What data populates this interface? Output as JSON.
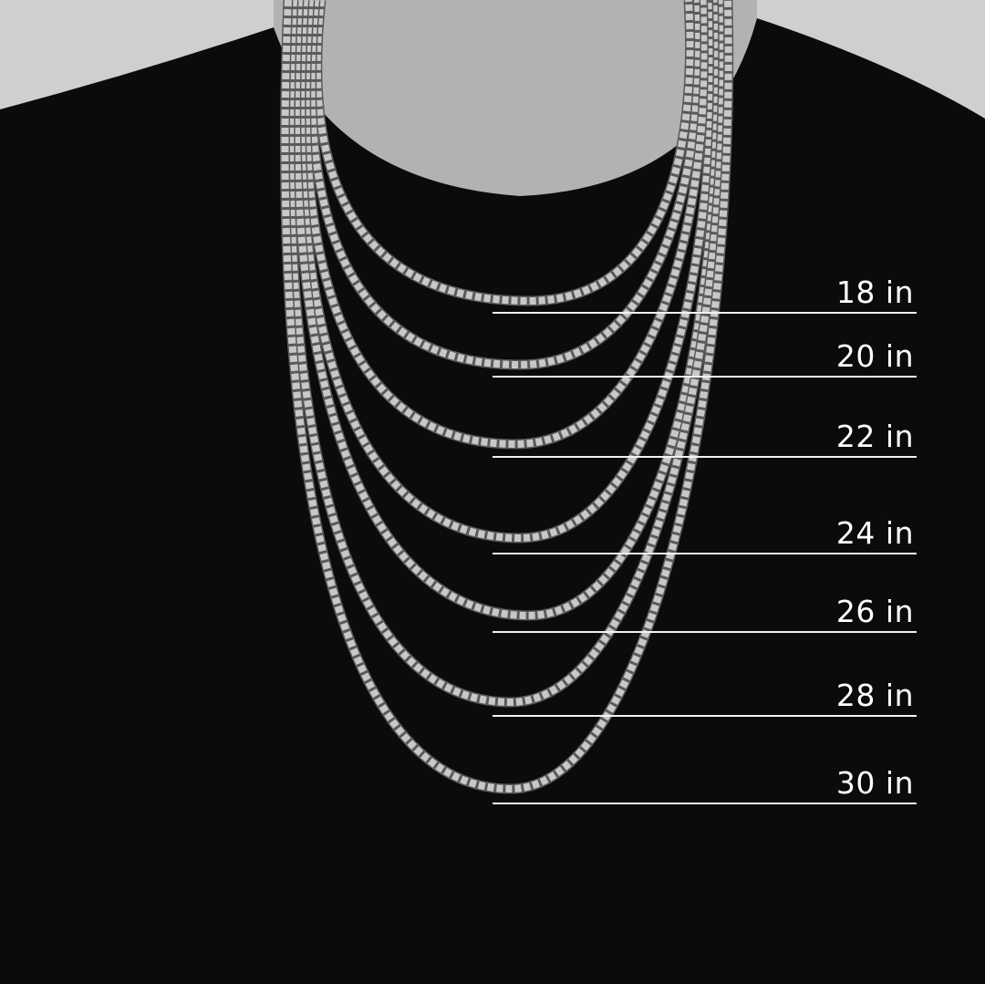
{
  "image": {
    "subject": "necklace length guide",
    "colors": {
      "background": "#cfcfcf",
      "shirt": "#0b0b0b",
      "skin": "#b5b5b5",
      "chain": "#c8c8c8",
      "marker": "#f2f2f2"
    }
  },
  "lengths": [
    {
      "label": "18 in"
    },
    {
      "label": "20 in"
    },
    {
      "label": "22 in"
    },
    {
      "label": "24 in"
    },
    {
      "label": "26 in"
    },
    {
      "label": "28 in"
    },
    {
      "label": "30 in"
    }
  ]
}
